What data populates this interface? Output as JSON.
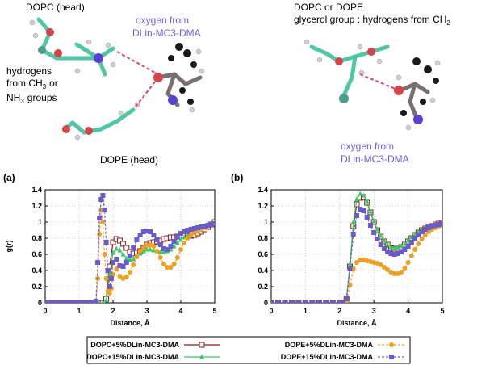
{
  "molecules": {
    "left_top": "DOPC (head)",
    "left_oxygen_1": "oxygen from",
    "left_oxygen_2": "DLin-MC3-DMA",
    "left_h_1": "hydrogens",
    "left_h_2": "from CH",
    "left_h_sub3": "3",
    "left_h_or": "or",
    "left_h_3": "NH",
    "left_h_sub3b": "3",
    "left_h_groups": "groups",
    "left_bottom": "DOPE (head)",
    "right_top_1": "DOPC or DOPE",
    "right_top_2": "glycerol group : hydrogens from CH",
    "right_top_sub2": "2",
    "right_oxygen_1": "oxygen from",
    "right_oxygen_2": "DLin-MC3-DMA"
  },
  "chart_data": [
    {
      "type": "line",
      "panel": "(a)",
      "ylabel": "g(r)",
      "xlabel": "Distance, Å",
      "xlim": [
        0,
        5
      ],
      "ylim": [
        0,
        1.4
      ],
      "xticks": [
        "0",
        "1",
        "2",
        "3",
        "4",
        "5"
      ],
      "yticks": [
        "0",
        "0.2",
        "0.4",
        "0.6",
        "0.8",
        "1",
        "1.2",
        "1.4"
      ],
      "grid": true,
      "series": [
        {
          "name": "DOPC+5%DLin-MC3-DMA",
          "color": "#8b1a1a",
          "marker": "square-open",
          "x": [
            0,
            0.1,
            0.2,
            0.3,
            0.4,
            0.5,
            0.6,
            0.7,
            0.8,
            0.9,
            1.0,
            1.1,
            1.2,
            1.3,
            1.4,
            1.5,
            1.6,
            1.7,
            1.8,
            1.9,
            2.0,
            2.1,
            2.2,
            2.3,
            2.4,
            2.5,
            2.6,
            2.7,
            2.8,
            2.9,
            3.0,
            3.1,
            3.2,
            3.3,
            3.4,
            3.5,
            3.6,
            3.7,
            3.8,
            3.9,
            4.0,
            4.1,
            4.2,
            4.3,
            4.4,
            4.5,
            4.6,
            4.7,
            4.8,
            4.9,
            5.0
          ],
          "y": [
            0,
            0,
            0,
            0,
            0,
            0,
            0,
            0,
            0,
            0,
            0,
            0,
            0,
            0,
            0,
            0,
            0,
            0,
            0.05,
            0.45,
            0.75,
            0.79,
            0.77,
            0.73,
            0.68,
            0.63,
            0.61,
            0.62,
            0.64,
            0.68,
            0.72,
            0.74,
            0.75,
            0.76,
            0.77,
            0.79,
            0.8,
            0.81,
            0.81,
            0.82,
            0.82,
            0.83,
            0.83,
            0.83,
            0.84,
            0.86,
            0.88,
            0.91,
            0.94,
            0.97,
            1.0
          ]
        },
        {
          "name": "DOPC+15%DLin-MC3-DMA",
          "color": "#33cc66",
          "marker": "triangle",
          "x": [
            0,
            0.1,
            0.2,
            0.3,
            0.4,
            0.5,
            0.6,
            0.7,
            0.8,
            0.9,
            1.0,
            1.1,
            1.2,
            1.3,
            1.4,
            1.5,
            1.6,
            1.7,
            1.8,
            1.9,
            2.0,
            2.1,
            2.2,
            2.3,
            2.4,
            2.5,
            2.6,
            2.7,
            2.8,
            2.9,
            3.0,
            3.1,
            3.2,
            3.3,
            3.4,
            3.5,
            3.6,
            3.7,
            3.8,
            3.9,
            4.0,
            4.1,
            4.2,
            4.3,
            4.4,
            4.5,
            4.6,
            4.7,
            4.8,
            4.9,
            5.0
          ],
          "y": [
            0,
            0,
            0,
            0,
            0,
            0,
            0,
            0,
            0,
            0,
            0,
            0,
            0,
            0,
            0,
            0,
            0,
            0,
            0.03,
            0.35,
            0.62,
            0.67,
            0.65,
            0.6,
            0.55,
            0.53,
            0.54,
            0.57,
            0.61,
            0.64,
            0.66,
            0.66,
            0.65,
            0.64,
            0.63,
            0.63,
            0.64,
            0.66,
            0.7,
            0.74,
            0.78,
            0.81,
            0.83,
            0.85,
            0.87,
            0.89,
            0.91,
            0.93,
            0.96,
            0.98,
            1.0
          ]
        },
        {
          "name": "DOPE+5%DLin-MC3-DMA",
          "color": "#f0a020",
          "marker": "circle",
          "x": [
            0,
            0.1,
            0.2,
            0.3,
            0.4,
            0.5,
            0.6,
            0.7,
            0.8,
            0.9,
            1.0,
            1.1,
            1.2,
            1.3,
            1.4,
            1.5,
            1.55,
            1.6,
            1.65,
            1.7,
            1.75,
            1.8,
            1.85,
            1.9,
            1.95,
            2.0,
            2.1,
            2.2,
            2.3,
            2.4,
            2.5,
            2.6,
            2.7,
            2.8,
            2.9,
            3.0,
            3.1,
            3.2,
            3.3,
            3.4,
            3.5,
            3.6,
            3.7,
            3.8,
            3.9,
            4.0,
            4.1,
            4.2,
            4.3,
            4.4,
            4.5,
            4.6,
            4.7,
            4.8,
            4.9,
            5.0
          ],
          "y": [
            0,
            0,
            0,
            0,
            0,
            0,
            0,
            0,
            0,
            0,
            0,
            0,
            0,
            0,
            0,
            0,
            0.3,
            0.85,
            1.15,
            1.0,
            0.6,
            0.3,
            0.15,
            0.12,
            0.18,
            0.35,
            0.42,
            0.33,
            0.3,
            0.32,
            0.38,
            0.47,
            0.57,
            0.64,
            0.68,
            0.71,
            0.72,
            0.7,
            0.64,
            0.56,
            0.48,
            0.44,
            0.44,
            0.48,
            0.56,
            0.66,
            0.74,
            0.8,
            0.84,
            0.87,
            0.89,
            0.91,
            0.93,
            0.95,
            0.97,
            0.98
          ]
        },
        {
          "name": "DOPE+15%DLin-MC3-DMA",
          "color": "#6a5acd",
          "marker": "square",
          "x": [
            0,
            0.1,
            0.2,
            0.3,
            0.4,
            0.5,
            0.6,
            0.7,
            0.8,
            0.9,
            1.0,
            1.1,
            1.2,
            1.3,
            1.4,
            1.5,
            1.55,
            1.6,
            1.65,
            1.7,
            1.75,
            1.8,
            1.85,
            1.9,
            1.95,
            2.0,
            2.1,
            2.2,
            2.3,
            2.4,
            2.5,
            2.6,
            2.7,
            2.8,
            2.9,
            3.0,
            3.1,
            3.2,
            3.3,
            3.4,
            3.5,
            3.6,
            3.7,
            3.8,
            3.9,
            4.0,
            4.1,
            4.2,
            4.3,
            4.4,
            4.5,
            4.6,
            4.7,
            4.8,
            4.9,
            5.0
          ],
          "y": [
            0,
            0,
            0,
            0,
            0,
            0,
            0,
            0,
            0,
            0,
            0,
            0,
            0,
            0,
            0,
            0.02,
            0.5,
            1.05,
            1.28,
            1.33,
            1.15,
            0.75,
            0.4,
            0.2,
            0.3,
            0.5,
            0.54,
            0.46,
            0.45,
            0.5,
            0.58,
            0.68,
            0.78,
            0.84,
            0.88,
            0.89,
            0.88,
            0.84,
            0.78,
            0.72,
            0.67,
            0.66,
            0.7,
            0.76,
            0.82,
            0.86,
            0.88,
            0.9,
            0.91,
            0.92,
            0.93,
            0.94,
            0.95,
            0.96,
            0.97,
            0.98
          ]
        }
      ]
    },
    {
      "type": "line",
      "panel": "(b)",
      "ylabel": "",
      "xlabel": "Distance, Å",
      "xlim": [
        0,
        5
      ],
      "ylim": [
        0,
        1.4
      ],
      "xticks": [
        "0",
        "1",
        "2",
        "3",
        "4",
        "5"
      ],
      "yticks": [
        "0",
        "0.2",
        "0.4",
        "0.6",
        "0.8",
        "1",
        "1.2",
        "1.4"
      ],
      "grid": true,
      "series": [
        {
          "name": "DOPC+5%DLin-MC3-DMA",
          "color": "#8b1a1a",
          "marker": "square-open",
          "x": [
            0,
            0.2,
            0.4,
            0.6,
            0.8,
            1.0,
            1.2,
            1.4,
            1.6,
            1.8,
            2.0,
            2.1,
            2.2,
            2.3,
            2.4,
            2.5,
            2.6,
            2.7,
            2.8,
            2.9,
            3.0,
            3.1,
            3.2,
            3.3,
            3.4,
            3.5,
            3.6,
            3.7,
            3.8,
            3.9,
            4.0,
            4.1,
            4.2,
            4.3,
            4.4,
            4.5,
            4.6,
            4.7,
            4.8,
            4.9,
            5.0
          ],
          "y": [
            0,
            0,
            0,
            0,
            0,
            0,
            0,
            0,
            0,
            0,
            0,
            0,
            0.05,
            0.45,
            0.95,
            1.22,
            1.3,
            1.31,
            1.24,
            1.12,
            1.0,
            0.9,
            0.82,
            0.76,
            0.72,
            0.68,
            0.67,
            0.67,
            0.69,
            0.72,
            0.76,
            0.8,
            0.84,
            0.87,
            0.9,
            0.92,
            0.94,
            0.95,
            0.97,
            0.98,
            0.99
          ]
        },
        {
          "name": "DOPC+15%DLin-MC3-DMA",
          "color": "#33cc66",
          "marker": "triangle",
          "x": [
            0,
            0.2,
            0.4,
            0.6,
            0.8,
            1.0,
            1.2,
            1.4,
            1.6,
            1.8,
            2.0,
            2.1,
            2.2,
            2.3,
            2.4,
            2.5,
            2.6,
            2.7,
            2.8,
            2.9,
            3.0,
            3.1,
            3.2,
            3.3,
            3.4,
            3.5,
            3.6,
            3.7,
            3.8,
            3.9,
            4.0,
            4.1,
            4.2,
            4.3,
            4.4,
            4.5,
            4.6,
            4.7,
            4.8,
            4.9,
            5.0
          ],
          "y": [
            0,
            0,
            0,
            0,
            0,
            0,
            0,
            0,
            0,
            0,
            0,
            0,
            0.05,
            0.48,
            1.0,
            1.28,
            1.35,
            1.33,
            1.25,
            1.13,
            1.01,
            0.91,
            0.83,
            0.77,
            0.72,
            0.69,
            0.68,
            0.68,
            0.7,
            0.73,
            0.77,
            0.81,
            0.85,
            0.88,
            0.9,
            0.92,
            0.94,
            0.95,
            0.96,
            0.97,
            0.98
          ]
        },
        {
          "name": "DOPE+5%DLin-MC3-DMA",
          "color": "#f0a020",
          "marker": "circle",
          "x": [
            0,
            0.2,
            0.4,
            0.6,
            0.8,
            1.0,
            1.2,
            1.4,
            1.6,
            1.8,
            2.0,
            2.1,
            2.2,
            2.3,
            2.4,
            2.5,
            2.6,
            2.7,
            2.8,
            2.9,
            3.0,
            3.1,
            3.2,
            3.3,
            3.4,
            3.5,
            3.6,
            3.7,
            3.8,
            3.9,
            4.0,
            4.1,
            4.2,
            4.3,
            4.4,
            4.5,
            4.6,
            4.7,
            4.8,
            4.9,
            5.0
          ],
          "y": [
            0,
            0,
            0,
            0,
            0,
            0,
            0,
            0,
            0,
            0,
            0,
            0,
            0.02,
            0.22,
            0.42,
            0.5,
            0.53,
            0.53,
            0.52,
            0.51,
            0.5,
            0.49,
            0.47,
            0.44,
            0.41,
            0.38,
            0.36,
            0.36,
            0.38,
            0.43,
            0.5,
            0.58,
            0.66,
            0.73,
            0.79,
            0.84,
            0.88,
            0.91,
            0.93,
            0.95,
            0.96
          ]
        },
        {
          "name": "DOPE+15%DLin-MC3-DMA",
          "color": "#6a5acd",
          "marker": "square",
          "x": [
            0,
            0.2,
            0.4,
            0.6,
            0.8,
            1.0,
            1.2,
            1.4,
            1.6,
            1.8,
            2.0,
            2.1,
            2.2,
            2.3,
            2.4,
            2.5,
            2.6,
            2.7,
            2.8,
            2.9,
            3.0,
            3.1,
            3.2,
            3.3,
            3.4,
            3.5,
            3.6,
            3.7,
            3.8,
            3.9,
            4.0,
            4.1,
            4.2,
            4.3,
            4.4,
            4.5,
            4.6,
            4.7,
            4.8,
            4.9,
            5.0
          ],
          "y": [
            0,
            0,
            0,
            0,
            0,
            0,
            0,
            0,
            0,
            0,
            0,
            0,
            0.05,
            0.42,
            0.85,
            1.08,
            1.16,
            1.14,
            1.06,
            0.96,
            0.87,
            0.79,
            0.72,
            0.67,
            0.63,
            0.61,
            0.6,
            0.61,
            0.63,
            0.66,
            0.7,
            0.75,
            0.8,
            0.84,
            0.88,
            0.91,
            0.93,
            0.95,
            0.96,
            0.97,
            0.98
          ]
        }
      ]
    }
  ]
}
